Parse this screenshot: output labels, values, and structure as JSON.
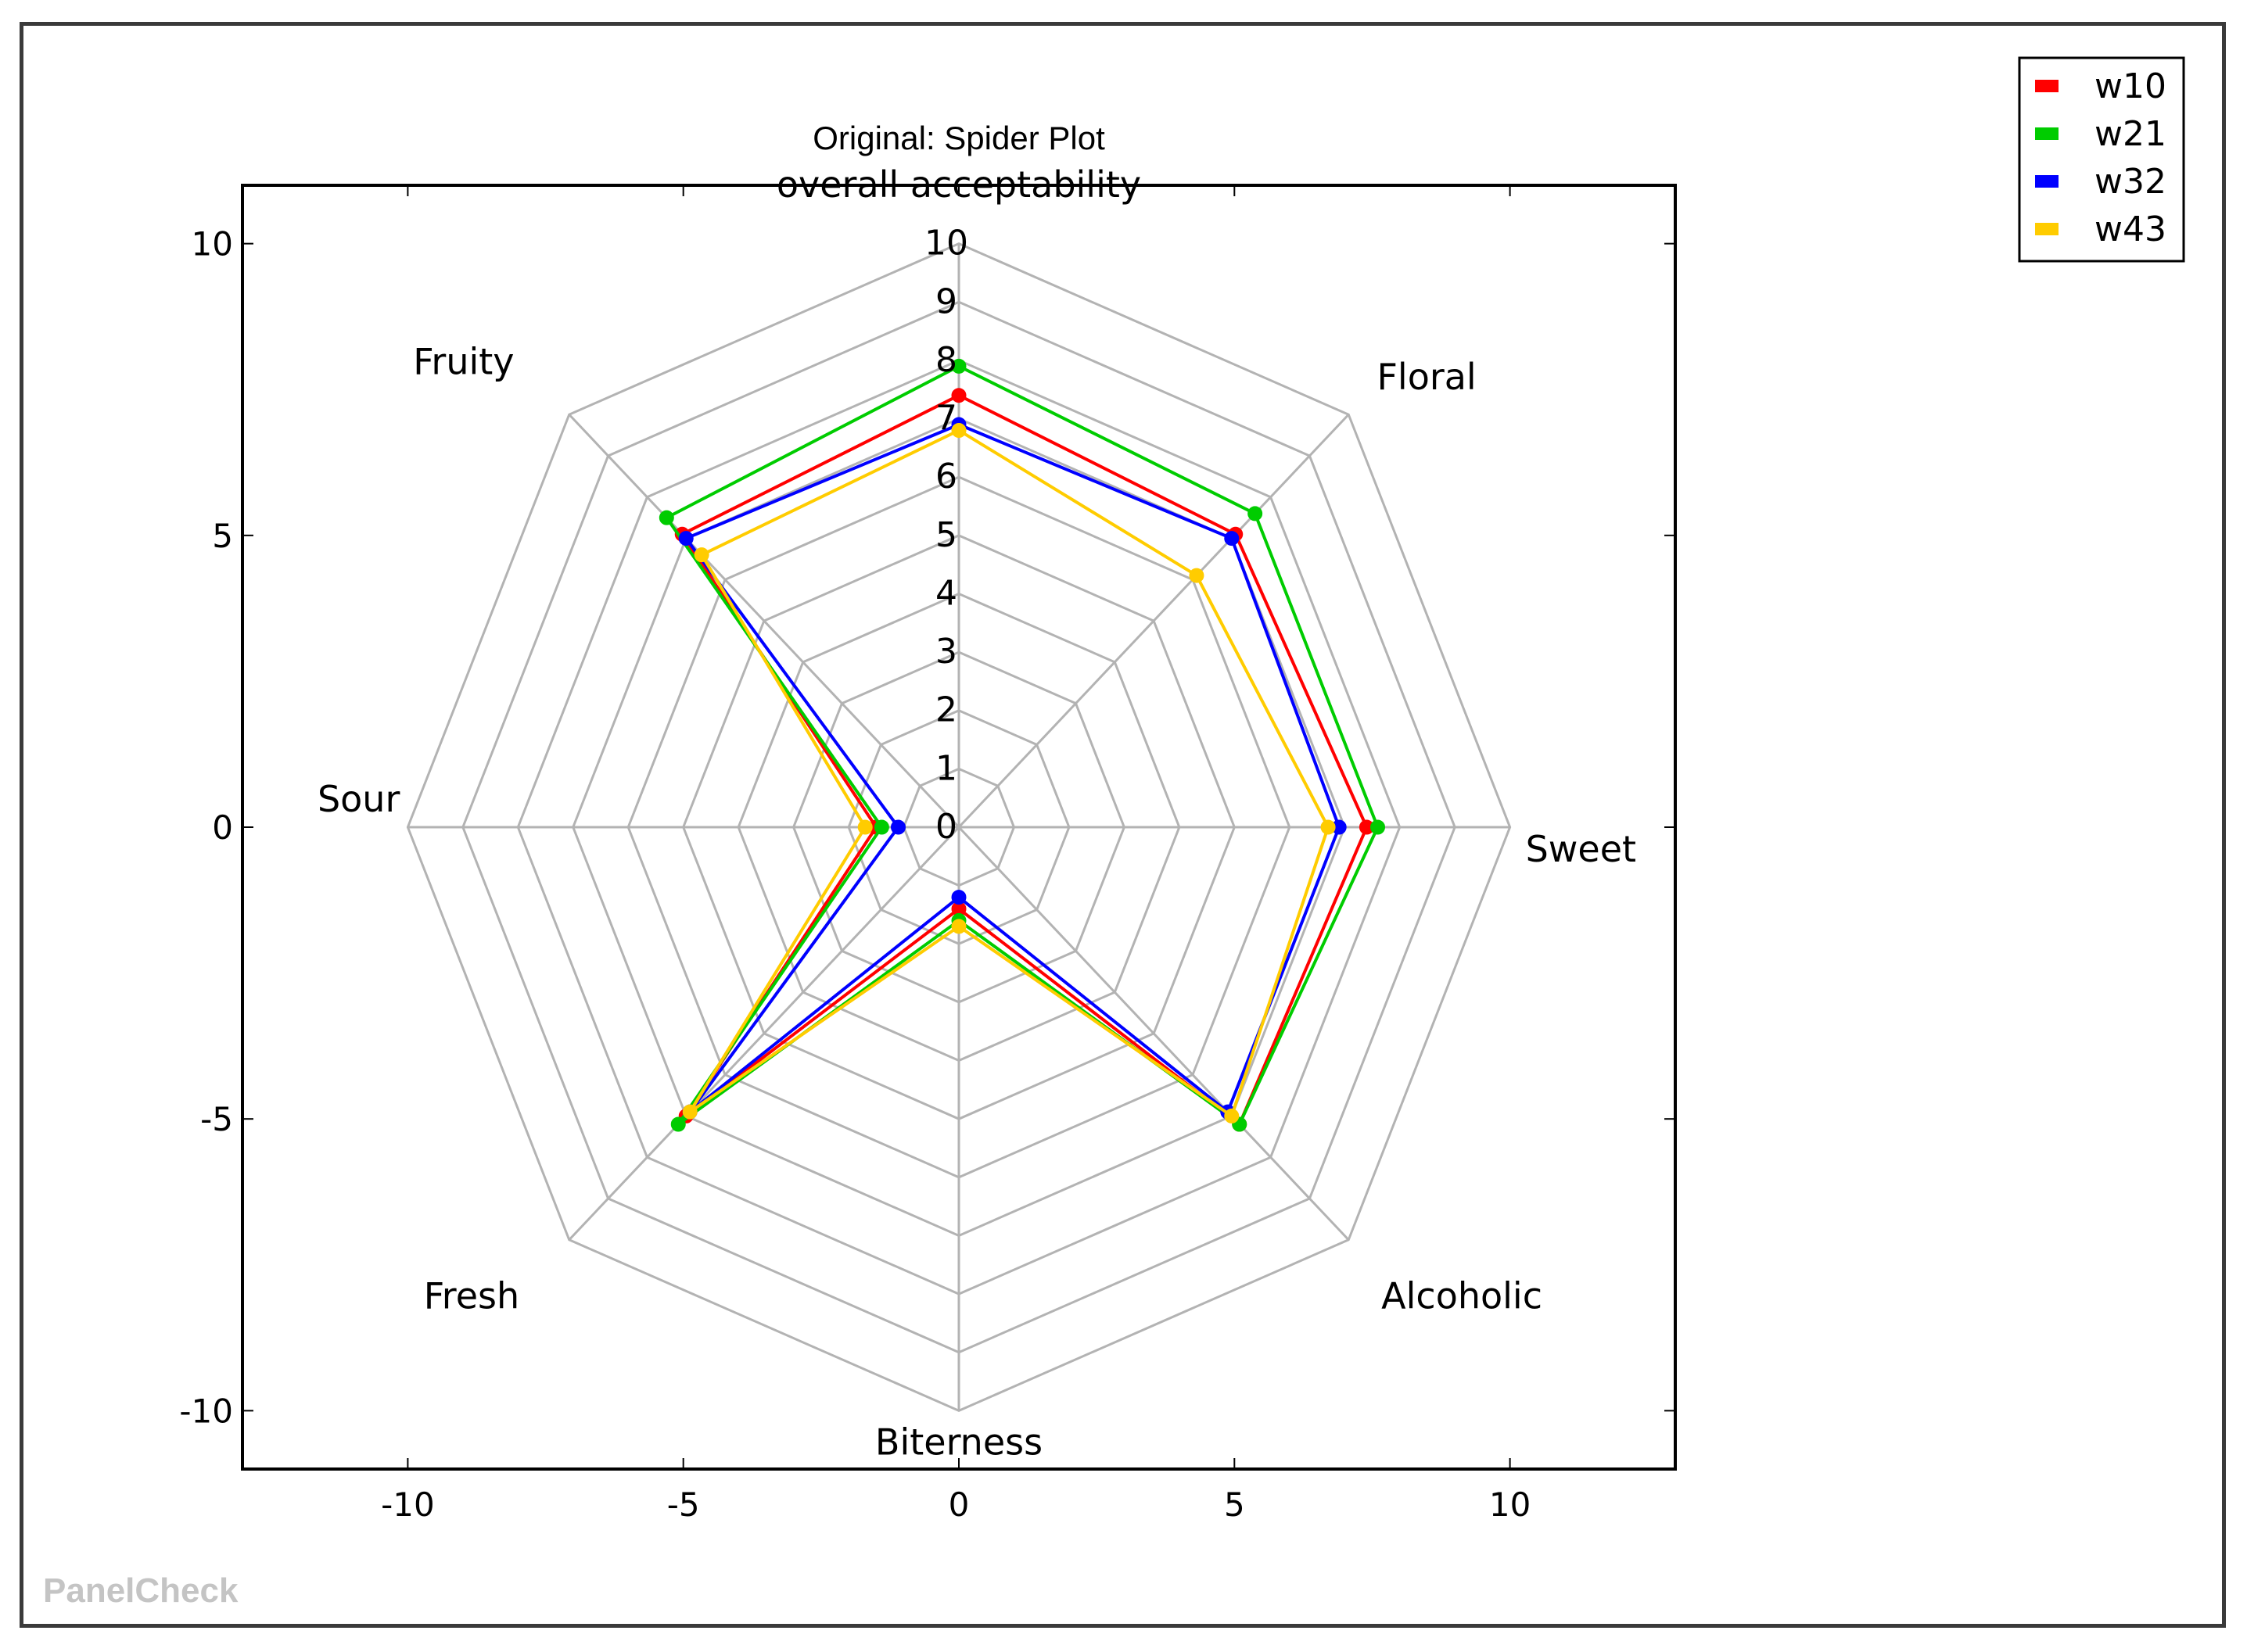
{
  "watermark": "PanelCheck",
  "chart_data": {
    "type": "radar",
    "title": "Original: Spider Plot",
    "axes": [
      "overall acceptability",
      "Floral",
      "Sweet",
      "Alcoholic",
      "Biterness",
      "Fresh",
      "Sour",
      "Fruity"
    ],
    "radial_range": [
      0,
      10
    ],
    "radial_ticks": [
      "0",
      "1",
      "2",
      "3",
      "4",
      "5",
      "6",
      "7",
      "8",
      "9",
      "10"
    ],
    "xlim": [
      -13,
      13
    ],
    "ylim": [
      -11,
      11
    ],
    "x_ticks": [
      -10,
      -5,
      0,
      5,
      10
    ],
    "y_ticks": [
      10,
      5,
      0,
      -5,
      -10
    ],
    "x_tick_labels": [
      "-10",
      "-5",
      "0",
      "5",
      "10"
    ],
    "y_tick_labels": [
      "10",
      "5",
      "0",
      "-5",
      "-10"
    ],
    "grid": true,
    "legend_position": "top-right",
    "series": [
      {
        "name": "w10",
        "color": "#ff0000",
        "values": [
          7.4,
          7.1,
          7.4,
          7.2,
          1.4,
          7.0,
          1.5,
          7.1
        ]
      },
      {
        "name": "w21",
        "color": "#00cc00",
        "values": [
          7.9,
          7.6,
          7.6,
          7.2,
          1.6,
          7.2,
          1.4,
          7.5
        ]
      },
      {
        "name": "w32",
        "color": "#0000ff",
        "values": [
          6.9,
          7.0,
          6.9,
          6.9,
          1.2,
          6.9,
          1.1,
          7.0
        ]
      },
      {
        "name": "w43",
        "color": "#ffcc00",
        "values": [
          6.8,
          6.1,
          6.7,
          7.0,
          1.7,
          6.9,
          1.7,
          6.6
        ]
      }
    ]
  }
}
